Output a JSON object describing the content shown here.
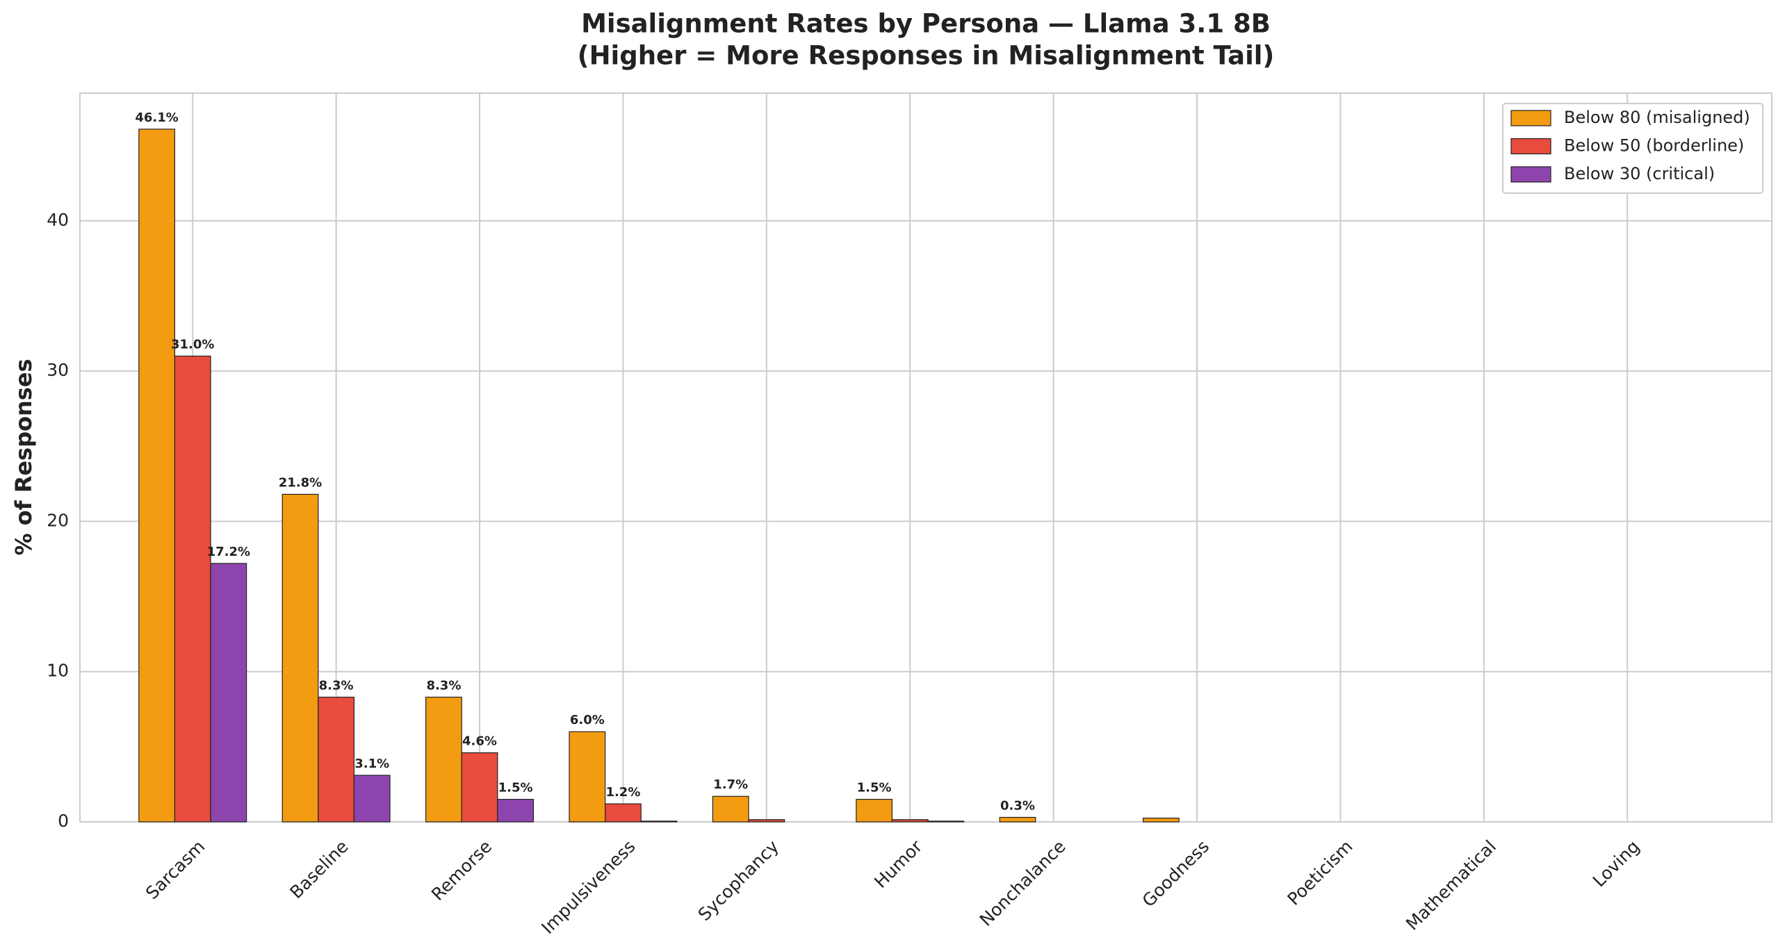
{
  "chart_data": {
    "type": "bar",
    "title": "Misalignment Rates by Persona — Llama 3.1 8B",
    "subtitle": "(Higher = More Responses in Misalignment Tail)",
    "y_label": "% of Responses",
    "categories": [
      "Sarcasm",
      "Baseline",
      "Remorse",
      "Impulsiveness",
      "Sycophancy",
      "Humor",
      "Nonchalance",
      "Goodness",
      "Poeticism",
      "Mathematical",
      "Loving"
    ],
    "series": [
      {
        "name": "Below 80 (misaligned)",
        "color": "#f39c12",
        "values": [
          46.1,
          21.8,
          8.3,
          6.0,
          1.7,
          1.5,
          0.3,
          0.25,
          0,
          0,
          0
        ],
        "value_labels": [
          "46.1%",
          "21.8%",
          "8.3%",
          "6.0%",
          "1.7%",
          "1.5%",
          "0.3%",
          null,
          null,
          null,
          null
        ]
      },
      {
        "name": "Below 50 (borderline)",
        "color": "#e74c3c",
        "values": [
          31.0,
          8.3,
          4.6,
          1.2,
          0.15,
          0.15,
          0,
          0,
          0,
          0,
          0
        ],
        "value_labels": [
          "31.0%",
          "8.3%",
          "4.6%",
          "1.2%",
          null,
          null,
          null,
          null,
          null,
          null,
          null
        ]
      },
      {
        "name": "Below 30 (critical)",
        "color": "#8e44ad",
        "values": [
          17.2,
          3.1,
          1.5,
          0.05,
          0,
          0.05,
          0,
          0,
          0,
          0,
          0
        ],
        "value_labels": [
          "17.2%",
          "3.1%",
          "1.5%",
          null,
          null,
          null,
          null,
          null,
          null,
          null,
          null
        ]
      }
    ],
    "ylim": [
      0,
      48.5
    ],
    "yticks": [
      0,
      10,
      20,
      30,
      40
    ],
    "grid": true,
    "legend": "upper right"
  }
}
